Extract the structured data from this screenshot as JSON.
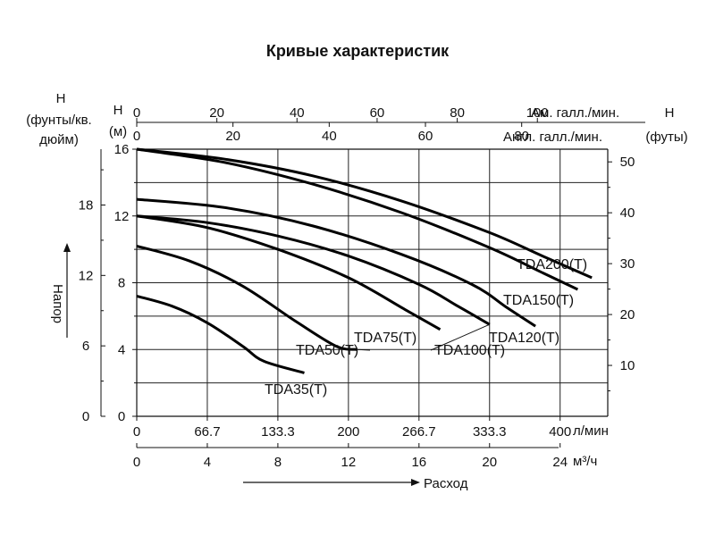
{
  "chart_data": {
    "type": "line",
    "title": "Кривые характеристик",
    "axes": {
      "bottom_lpm": {
        "unit": "л/мин",
        "ticks": [
          "0",
          "66.7",
          "133.3",
          "200",
          "266.7",
          "333.3",
          "400"
        ]
      },
      "bottom_m3h": {
        "unit": "м³/ч",
        "ticks": [
          "0",
          "4",
          "8",
          "12",
          "16",
          "20",
          "24"
        ]
      },
      "top_us_gpm": {
        "unit": "Ам. галл./мин.",
        "ticks": [
          "0",
          "20",
          "40",
          "60",
          "80",
          "100"
        ]
      },
      "top_imp_gpm": {
        "unit": "Англ. галл./мин.",
        "ticks": [
          "0",
          "20",
          "40",
          "60",
          "80"
        ]
      },
      "left_psi": {
        "label_h": "H",
        "label": "(фунты/кв. дюйм)",
        "ticks": [
          "0",
          "6",
          "12",
          "18"
        ]
      },
      "left_m": {
        "label_h": "H",
        "label": "(м)",
        "ticks": [
          "0",
          "4",
          "8",
          "12",
          "16"
        ]
      },
      "right_ft": {
        "label_h": "H",
        "label": "(футы)",
        "ticks": [
          "10",
          "20",
          "30",
          "40",
          "50"
        ]
      }
    },
    "xlabel": "Расход",
    "ylabel": "Напор",
    "xlim_m3h": [
      0,
      26.7
    ],
    "ylim_m": [
      0,
      16
    ],
    "grid": true,
    "series": [
      {
        "name": "TDA35(T)",
        "points": [
          [
            0,
            7.2
          ],
          [
            2,
            6.6
          ],
          [
            4,
            5.6
          ],
          [
            6,
            4.2
          ],
          [
            7.2,
            3.3
          ],
          [
            9.5,
            2.6
          ]
        ]
      },
      {
        "name": "TDA50(T)",
        "points": [
          [
            0,
            10.2
          ],
          [
            3,
            9.3
          ],
          [
            6,
            7.8
          ],
          [
            9,
            5.7
          ],
          [
            11.3,
            4.2
          ],
          [
            12.5,
            4.0
          ]
        ]
      },
      {
        "name": "TDA75(T)",
        "points": [
          [
            0,
            12.0
          ],
          [
            4,
            11.3
          ],
          [
            8,
            10.0
          ],
          [
            12,
            8.3
          ],
          [
            15.2,
            6.4
          ],
          [
            17.2,
            5.2
          ]
        ]
      },
      {
        "name": "TDA100(T)",
        "points": [
          [
            0,
            12.0
          ],
          [
            4,
            11.6
          ],
          [
            8,
            10.8
          ],
          [
            12,
            9.6
          ],
          [
            16,
            7.9
          ],
          [
            18.2,
            6.6
          ],
          [
            20.0,
            5.5
          ]
        ]
      },
      {
        "name": "TDA120(T)",
        "points": [
          [
            0,
            13.0
          ],
          [
            5,
            12.5
          ],
          [
            10,
            11.4
          ],
          [
            15,
            9.7
          ],
          [
            19,
            7.9
          ],
          [
            21.0,
            6.5
          ],
          [
            22.6,
            5.4
          ]
        ]
      },
      {
        "name": "TDA150(T)",
        "points": [
          [
            0,
            16.0
          ],
          [
            5,
            15.2
          ],
          [
            10,
            13.9
          ],
          [
            15,
            12.2
          ],
          [
            20,
            10.1
          ],
          [
            23,
            8.6
          ],
          [
            25.0,
            7.6
          ]
        ]
      },
      {
        "name": "TDA200(T)",
        "points": [
          [
            0,
            16.0
          ],
          [
            5,
            15.4
          ],
          [
            10,
            14.4
          ],
          [
            15,
            12.9
          ],
          [
            20,
            11.0
          ],
          [
            23,
            9.6
          ],
          [
            25.8,
            8.3
          ]
        ]
      }
    ]
  }
}
